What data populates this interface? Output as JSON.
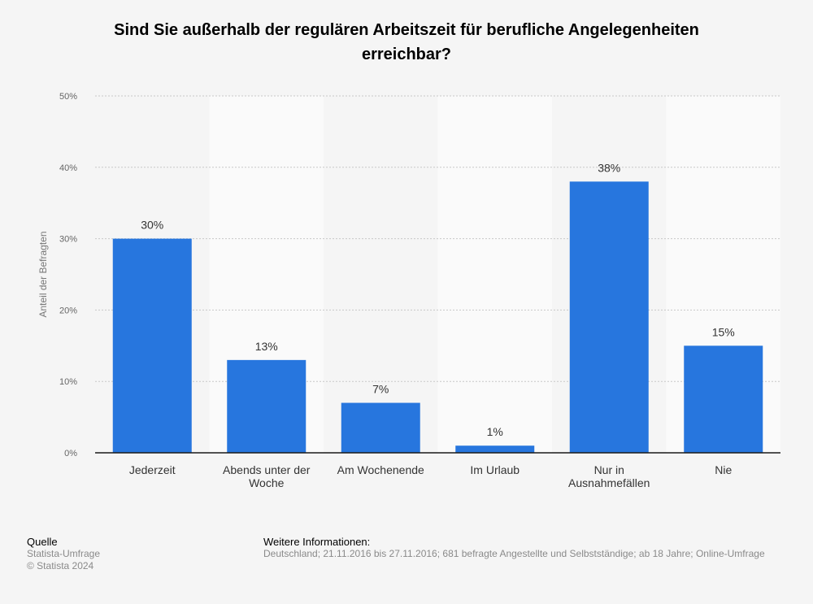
{
  "chart_data": {
    "type": "bar",
    "title": "Sind Sie außerhalb der regulären Arbeitszeit für berufliche Angelegenheiten erreichbar?",
    "ylabel": "Anteil der Befragten",
    "xlabel": "",
    "categories": [
      [
        "Jederzeit"
      ],
      [
        "Abends unter der",
        "Woche"
      ],
      [
        "Am Wochenende"
      ],
      [
        "Im Urlaub"
      ],
      [
        "Nur in",
        "Ausnahmefällen"
      ],
      [
        "Nie"
      ]
    ],
    "values": [
      30,
      13,
      7,
      1,
      38,
      15
    ],
    "value_labels": [
      "30%",
      "13%",
      "7%",
      "1%",
      "38%",
      "15%"
    ],
    "ylim": [
      0,
      50
    ],
    "yticks": [
      0,
      10,
      20,
      30,
      40,
      50
    ],
    "ytick_labels": [
      "0%",
      "10%",
      "20%",
      "30%",
      "40%",
      "50%"
    ],
    "grid": true,
    "colors": {
      "bar": "#2776de",
      "band": "#fafafa",
      "grid": "#c8c8c8",
      "axis": "#1a1a1a",
      "text": "#333333",
      "tick": "#666666"
    }
  },
  "footer": {
    "source_heading": "Quelle",
    "source_lines": [
      "Statista-Umfrage",
      "© Statista 2024"
    ],
    "info_heading": "Weitere Informationen:",
    "info_text": "Deutschland; 21.11.2016 bis 27.11.2016; 681 befragte Angestellte und Selbstständige; ab 18 Jahre; Online-Umfrage"
  }
}
